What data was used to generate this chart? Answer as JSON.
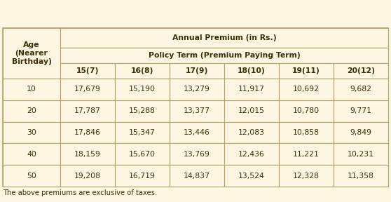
{
  "background_color": "#fdf6e3",
  "border_color": "#b8a060",
  "col1_header": "Age\n(Nearer\nBirthday)",
  "main_header": "Annual Premium (in Rs.)",
  "sub_header": "Policy Term (Premium Paying Term)",
  "col_headers": [
    "15(7)",
    "16(8)",
    "17(9)",
    "18(10)",
    "19(11)",
    "20(12)"
  ],
  "row_labels": [
    "10",
    "20",
    "30",
    "40",
    "50"
  ],
  "table_data": [
    [
      "17,679",
      "15,190",
      "13,279",
      "11,917",
      "10,692",
      "9,682"
    ],
    [
      "17,787",
      "15,288",
      "13,377",
      "12,015",
      "10,780",
      "9,771"
    ],
    [
      "17,846",
      "15,347",
      "13,446",
      "12,083",
      "10,858",
      "9,849"
    ],
    [
      "18,159",
      "15,670",
      "13,769",
      "12,436",
      "11,221",
      "10,231"
    ],
    [
      "19,208",
      "16,719",
      "14,837",
      "13,524",
      "12,328",
      "11,358"
    ]
  ],
  "footer_text": "The above premiums are exclusive of taxes.",
  "header_text_color": "#3d3000",
  "data_text_color": "#3d3000",
  "header_font_size": 7.8,
  "data_font_size": 7.8,
  "footer_font_size": 7.2
}
